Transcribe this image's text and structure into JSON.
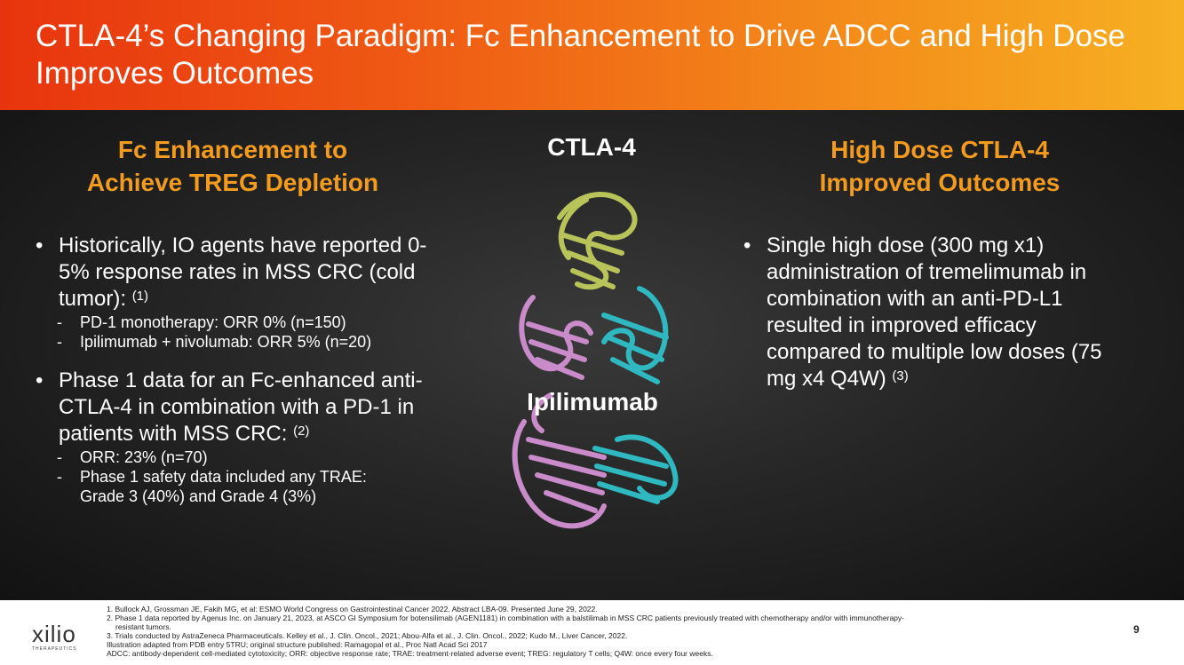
{
  "header": {
    "title": "CTLA-4’s Changing Paradigm: Fc Enhancement to Drive ADCC and High Dose Improves Outcomes"
  },
  "left": {
    "heading_line1": "Fc Enhancement to",
    "heading_line2": "Achieve TREG Depletion",
    "bullet1": {
      "text": "Historically, IO agents have reported 0-5% response rates in MSS CRC (cold tumor):",
      "ref": "(1)",
      "subs": [
        "PD-1 monotherapy: ORR 0% (n=150)",
        "Ipilimumab + nivolumab: ORR 5% (n=20)"
      ]
    },
    "bullet2": {
      "text": "Phase 1 data for an Fc-enhanced anti-CTLA-4 in combination with a PD-1 in patients with MSS CRC:",
      "ref": "(2)",
      "subs": [
        "ORR: 23% (n=70)",
        "Phase 1 safety data included any TRAE: Grade 3 (40%) and Grade 4 (3%)"
      ]
    }
  },
  "center": {
    "ctla_label": "CTLA-4",
    "ipi_label": "Ipilimumab",
    "colors": {
      "ctla4": "#b8c45a",
      "heavy": "#c98bc9",
      "light": "#2fb8c0"
    }
  },
  "right": {
    "heading_line1": "High Dose CTLA-4",
    "heading_line2": "Improved Outcomes",
    "bullet1": {
      "text": "Single high dose (300 mg x1) administration of tremelimumab in combination with an anti-PD-L1 resulted in improved efficacy compared to multiple low doses (75 mg x4 Q4W)",
      "ref": "(3)"
    }
  },
  "footer": {
    "logo_word": "xilio",
    "logo_sub": "THERAPEUTICS",
    "page_number": "9",
    "refs": [
      "1. Bullock AJ, Grossman JE, Fakih MG, et al:  ESMO World Congress on Gastrointestinal Cancer 2022. Abstract LBA-09. Presented June 29, 2022.",
      "2. Phase 1 data reported by Agenus Inc. on January 21, 2023, at ASCO GI Symposium for botensilimab (AGEN1181) in combination with a balstilimab in MSS CRC patients previously treated with chemotherapy and/or with immunotherapy-",
      "resistant tumors.",
      "3. Trials conducted by AstraZeneca Pharmaceuticals. Kelley et al., J. Clin. Oncol., 2021; Abou-Alfa et al., J. Clin. Oncol., 2022; Kudo M., Liver Cancer, 2022.",
      "Illustration adapted from PDB entry 5TRU; original structure published: Ramagopal et al., Proc Natl Acad Sci 2017",
      "ADCC: antibody-dependent cell-mediated cytotoxicity; ORR: objective response rate; TRAE: treatment-related adverse event; TREG: regulatory T cells; Q4W: once every four weeks."
    ]
  },
  "accent_color": "#f39b1f"
}
